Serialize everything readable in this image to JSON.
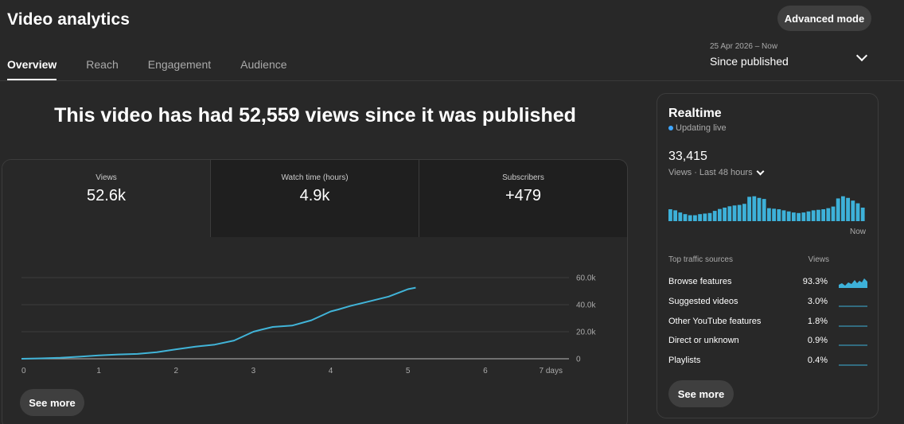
{
  "header": {
    "title": "Video analytics",
    "advanced_label": "Advanced mode"
  },
  "tabs": [
    {
      "label": "Overview",
      "active": true
    },
    {
      "label": "Reach"
    },
    {
      "label": "Engagement"
    },
    {
      "label": "Audience"
    }
  ],
  "date_range": {
    "range": "25 Apr 2026 – Now",
    "label": "Since published"
  },
  "headline": "This video has had 52,559 views since it was published",
  "metrics": [
    {
      "label": "Views",
      "value": "52.6k"
    },
    {
      "label": "Watch time (hours)",
      "value": "4.9k"
    },
    {
      "label": "Subscribers",
      "value": "+479"
    }
  ],
  "chart_data": {
    "type": "line",
    "x_tick_labels": [
      "0",
      "1",
      "2",
      "3",
      "4",
      "5",
      "6",
      "7 days"
    ],
    "y_tick_labels": [
      "0",
      "20.0k",
      "40.0k",
      "60.0k"
    ],
    "xlim": [
      0,
      7
    ],
    "ylim": [
      0,
      60000
    ],
    "grid": true,
    "series": [
      {
        "x": [
          0,
          0.25,
          0.5,
          0.75,
          1.0,
          1.25,
          1.5,
          1.75,
          2.0,
          2.25,
          2.5,
          2.75,
          3.0,
          3.1,
          3.25,
          3.5,
          3.75,
          4.0,
          4.1,
          4.25,
          4.5,
          4.75,
          5.0,
          5.1
        ],
        "y": [
          0,
          300,
          700,
          1500,
          2500,
          3200,
          3600,
          4800,
          7000,
          9000,
          10500,
          13500,
          20000,
          21500,
          23500,
          24500,
          28500,
          35000,
          36500,
          39000,
          42500,
          46000,
          51500,
          52600
        ]
      }
    ]
  },
  "see_more_label": "See more",
  "realtime": {
    "title": "Realtime",
    "live_label": "Updating live",
    "count": "33,415",
    "subtitle": "Views · Last 48 hours",
    "now_label": "Now",
    "bars": [
      0.44,
      0.4,
      0.32,
      0.26,
      0.22,
      0.22,
      0.26,
      0.28,
      0.3,
      0.38,
      0.45,
      0.5,
      0.55,
      0.58,
      0.6,
      0.64,
      0.9,
      0.92,
      0.86,
      0.82,
      0.48,
      0.46,
      0.44,
      0.4,
      0.36,
      0.32,
      0.3,
      0.32,
      0.36,
      0.4,
      0.42,
      0.44,
      0.48,
      0.54,
      0.84,
      0.92,
      0.86,
      0.76,
      0.66,
      0.5
    ],
    "traffic_header": "Top traffic sources",
    "traffic_col": "Views",
    "traffic": [
      {
        "name": "Browse features",
        "value": "93.3%"
      },
      {
        "name": "Suggested videos",
        "value": "3.0%"
      },
      {
        "name": "Other YouTube features",
        "value": "1.8%"
      },
      {
        "name": "Direct or unknown",
        "value": "0.9%"
      },
      {
        "name": "Playlists",
        "value": "0.4%"
      }
    ]
  },
  "colors": {
    "accent": "#3ea6ff",
    "line": "#41b4d8",
    "bar": "#3db1d9"
  }
}
